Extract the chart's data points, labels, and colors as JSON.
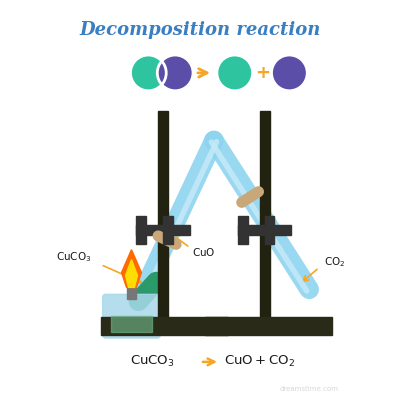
{
  "title": "Decomposition reaction",
  "title_color": "#3a7fc1",
  "title_fontsize": 13,
  "bg_color": "#ffffff",
  "molecule_colors": {
    "green": "#2ec4a0",
    "purple": "#5b4ea8"
  },
  "arrow_color": "#f5a623",
  "stand_color": "#222211",
  "base_color": "#2a2a18",
  "tube_color": "#8dd4ef",
  "tube_highlight": "#c8eaf8",
  "stopper_color": "#c8a878",
  "clamp_color": "#333333",
  "label_color": "#1a1a1a",
  "label_arrow_color": "#f5a623",
  "equation_arrow_color": "#f5a623",
  "flame_orange": "#ff6a00",
  "flame_yellow": "#ffdd00",
  "lamp_body_color": "#a8d8ea",
  "lamp_liquid_color": "#6aaa80",
  "watermark_color": "#bbbbbb",
  "green_content_color": "#2a9a6a",
  "tube_lw": 14,
  "stopper_lw": 8
}
